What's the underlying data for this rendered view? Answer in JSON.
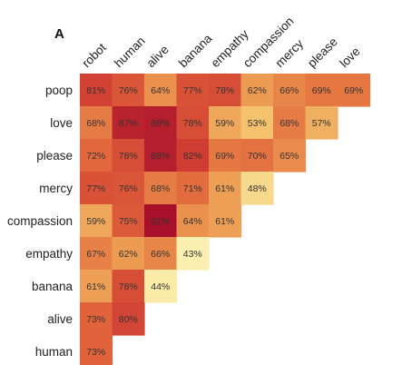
{
  "panel_label": "A",
  "chart_data": {
    "type": "heatmap",
    "value_unit": "%",
    "x_categories": [
      "robot",
      "human",
      "alive",
      "banana",
      "empathy",
      "compassion",
      "mercy",
      "please",
      "love"
    ],
    "y_categories": [
      "poop",
      "love",
      "please",
      "mercy",
      "compassion",
      "empathy",
      "banana",
      "alive",
      "human"
    ],
    "cells": [
      {
        "row": "poop",
        "values": [
          81,
          76,
          64,
          77,
          78,
          62,
          66,
          69,
          69
        ]
      },
      {
        "row": "love",
        "values": [
          68,
          87,
          88,
          78,
          59,
          53,
          68,
          57
        ]
      },
      {
        "row": "please",
        "values": [
          72,
          78,
          88,
          82,
          69,
          70,
          65
        ]
      },
      {
        "row": "mercy",
        "values": [
          77,
          76,
          68,
          71,
          61,
          48
        ]
      },
      {
        "row": "compassion",
        "values": [
          59,
          75,
          91,
          64,
          61
        ]
      },
      {
        "row": "empathy",
        "values": [
          67,
          62,
          66,
          43
        ]
      },
      {
        "row": "banana",
        "values": [
          61,
          78,
          44
        ]
      },
      {
        "row": "alive",
        "values": [
          73,
          80
        ]
      },
      {
        "row": "human",
        "values": [
          73
        ]
      }
    ],
    "colormap": [
      "#fbf0b0",
      "#f4c36d",
      "#ec9a52",
      "#e2683d",
      "#d13f33",
      "#a80f2a"
    ],
    "color_range": [
      43,
      91
    ]
  }
}
